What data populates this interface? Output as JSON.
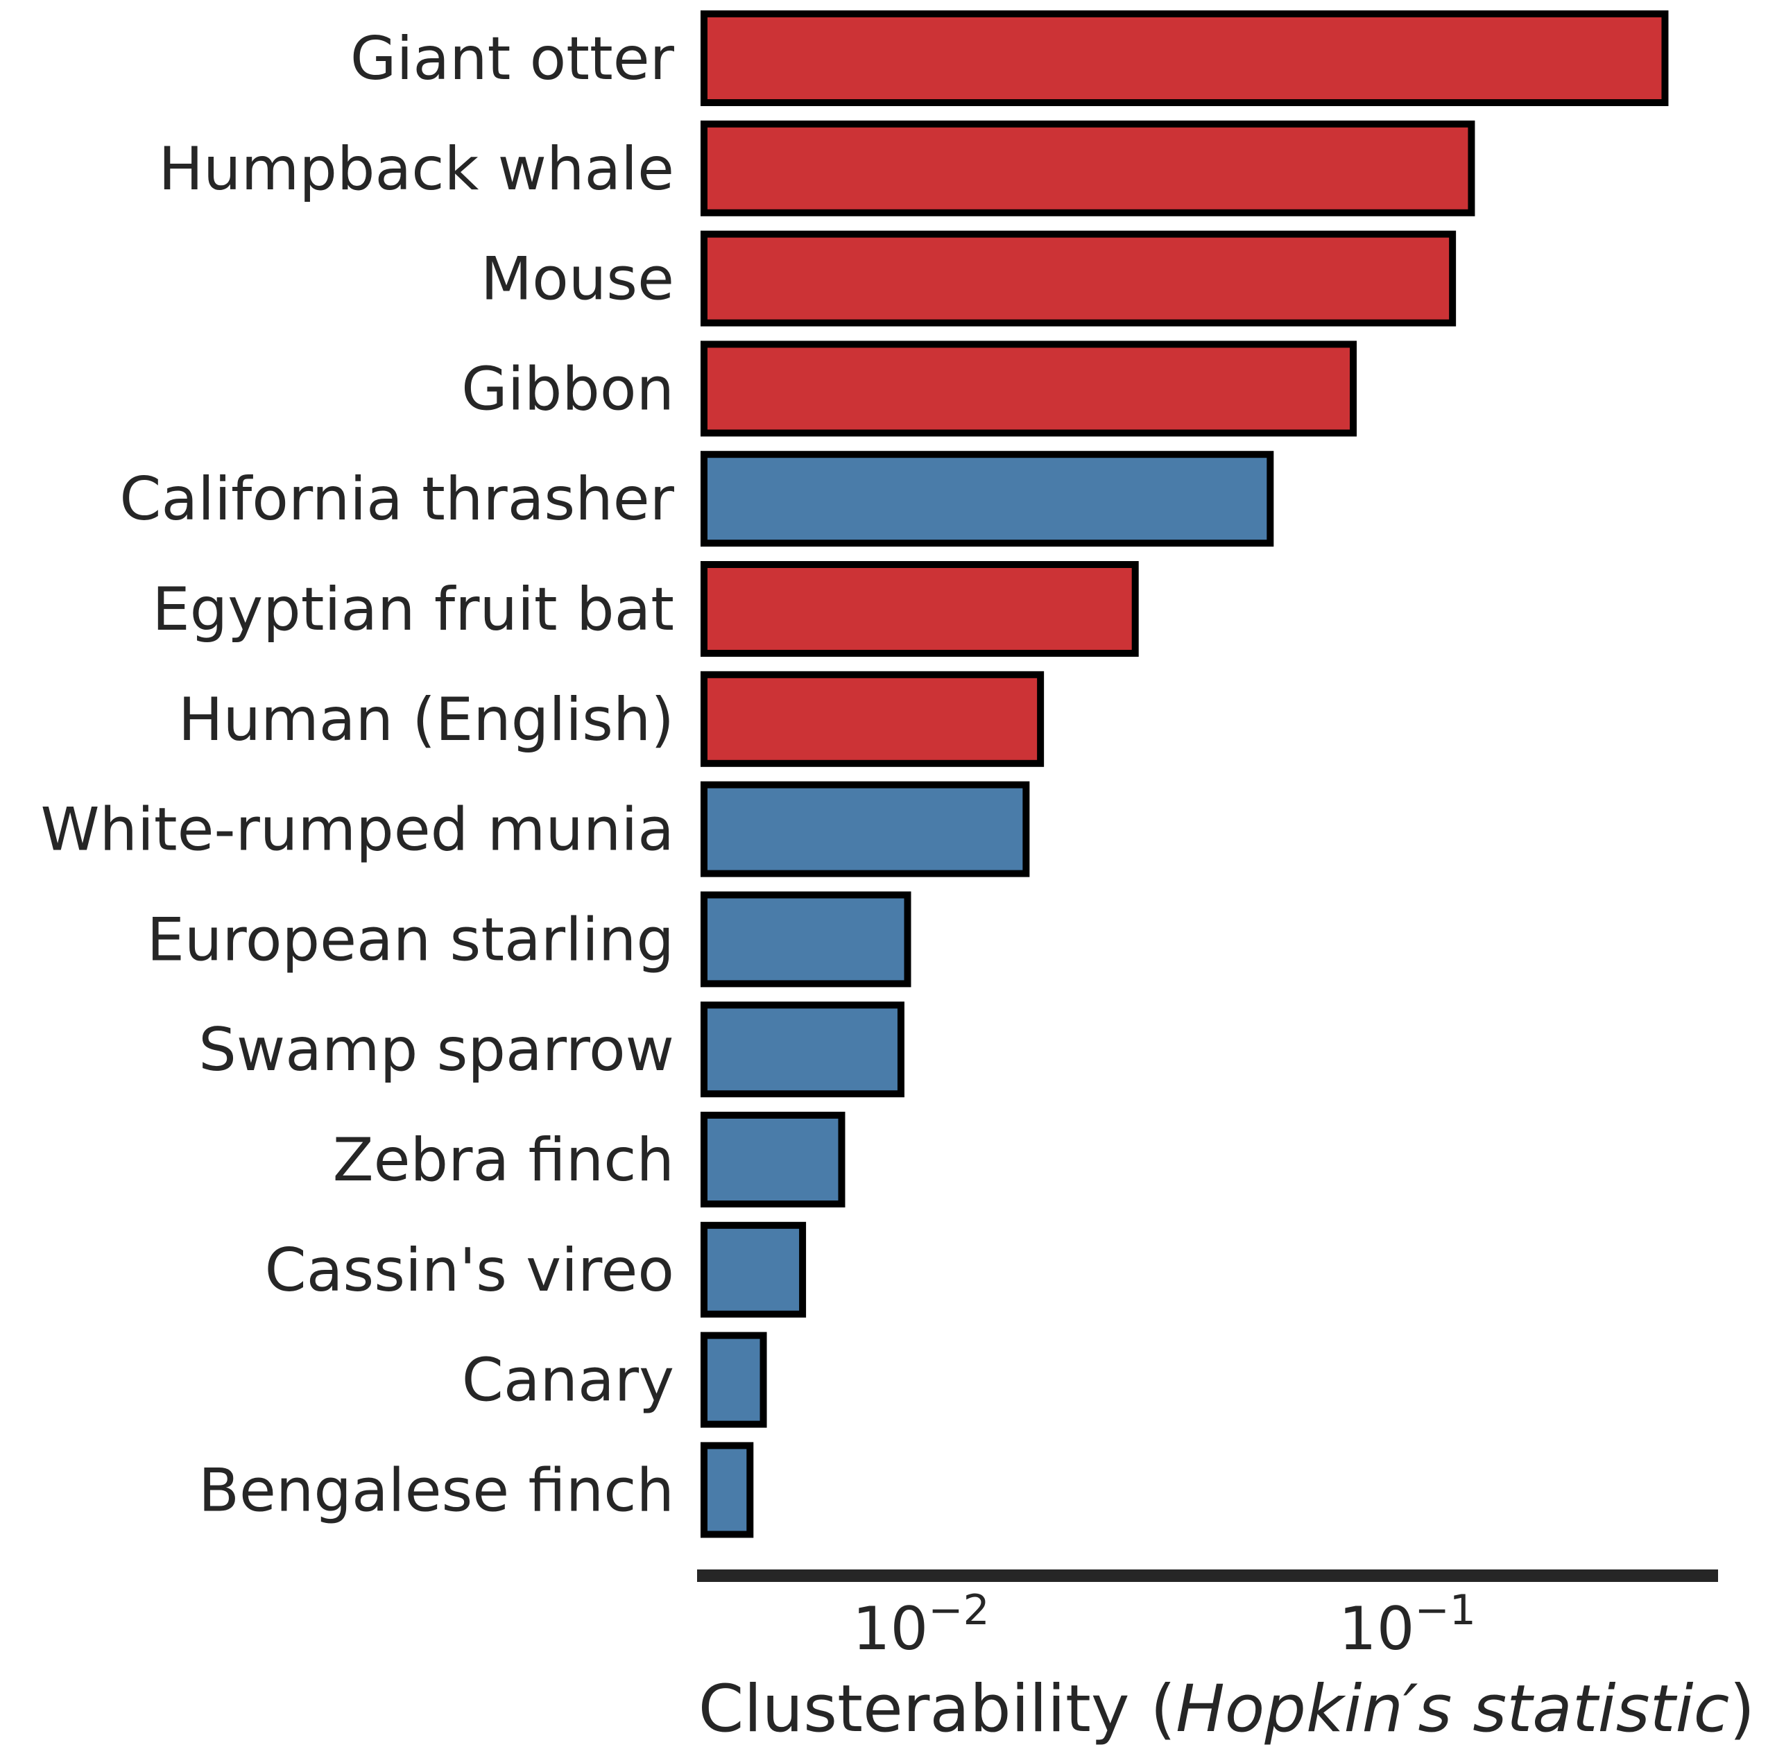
{
  "chart_data": {
    "type": "bar",
    "orientation": "horizontal",
    "xscale": "log",
    "xlim": [
      0.0037,
      0.45
    ],
    "grid": false,
    "legend": "none",
    "xlabel": {
      "prefix": "Clusterability (",
      "italic": "Hopkin′s statistic",
      "suffix": ")"
    },
    "xticks": [
      {
        "value": 0.01,
        "base": "10",
        "exponent": "−2"
      },
      {
        "value": 0.1,
        "base": "10",
        "exponent": "−1"
      }
    ],
    "colors": {
      "mammal": "#cc3336",
      "bird": "#4a7ca9",
      "edge": "#000000",
      "axis": "#262626"
    },
    "bars": [
      {
        "label": "Giant otter",
        "value": 0.35,
        "group": "mammal"
      },
      {
        "label": "Humpback whale",
        "value": 0.14,
        "group": "mammal"
      },
      {
        "label": "Mouse",
        "value": 0.128,
        "group": "mammal"
      },
      {
        "label": "Gibbon",
        "value": 0.08,
        "group": "mammal"
      },
      {
        "label": "California thrasher",
        "value": 0.054,
        "group": "bird"
      },
      {
        "label": "Egyptian fruit bat",
        "value": 0.0285,
        "group": "mammal"
      },
      {
        "label": "Human (English)",
        "value": 0.0182,
        "group": "mammal"
      },
      {
        "label": "White-rumped munia",
        "value": 0.017,
        "group": "bird"
      },
      {
        "label": "European starling",
        "value": 0.0097,
        "group": "bird"
      },
      {
        "label": "Swamp sparrow",
        "value": 0.0094,
        "group": "bird"
      },
      {
        "label": "Zebra finch",
        "value": 0.0071,
        "group": "bird"
      },
      {
        "label": "Cassin's vireo",
        "value": 0.0059,
        "group": "bird"
      },
      {
        "label": "Canary",
        "value": 0.0049,
        "group": "bird"
      },
      {
        "label": "Bengalese finch",
        "value": 0.0046,
        "group": "bird"
      }
    ]
  }
}
